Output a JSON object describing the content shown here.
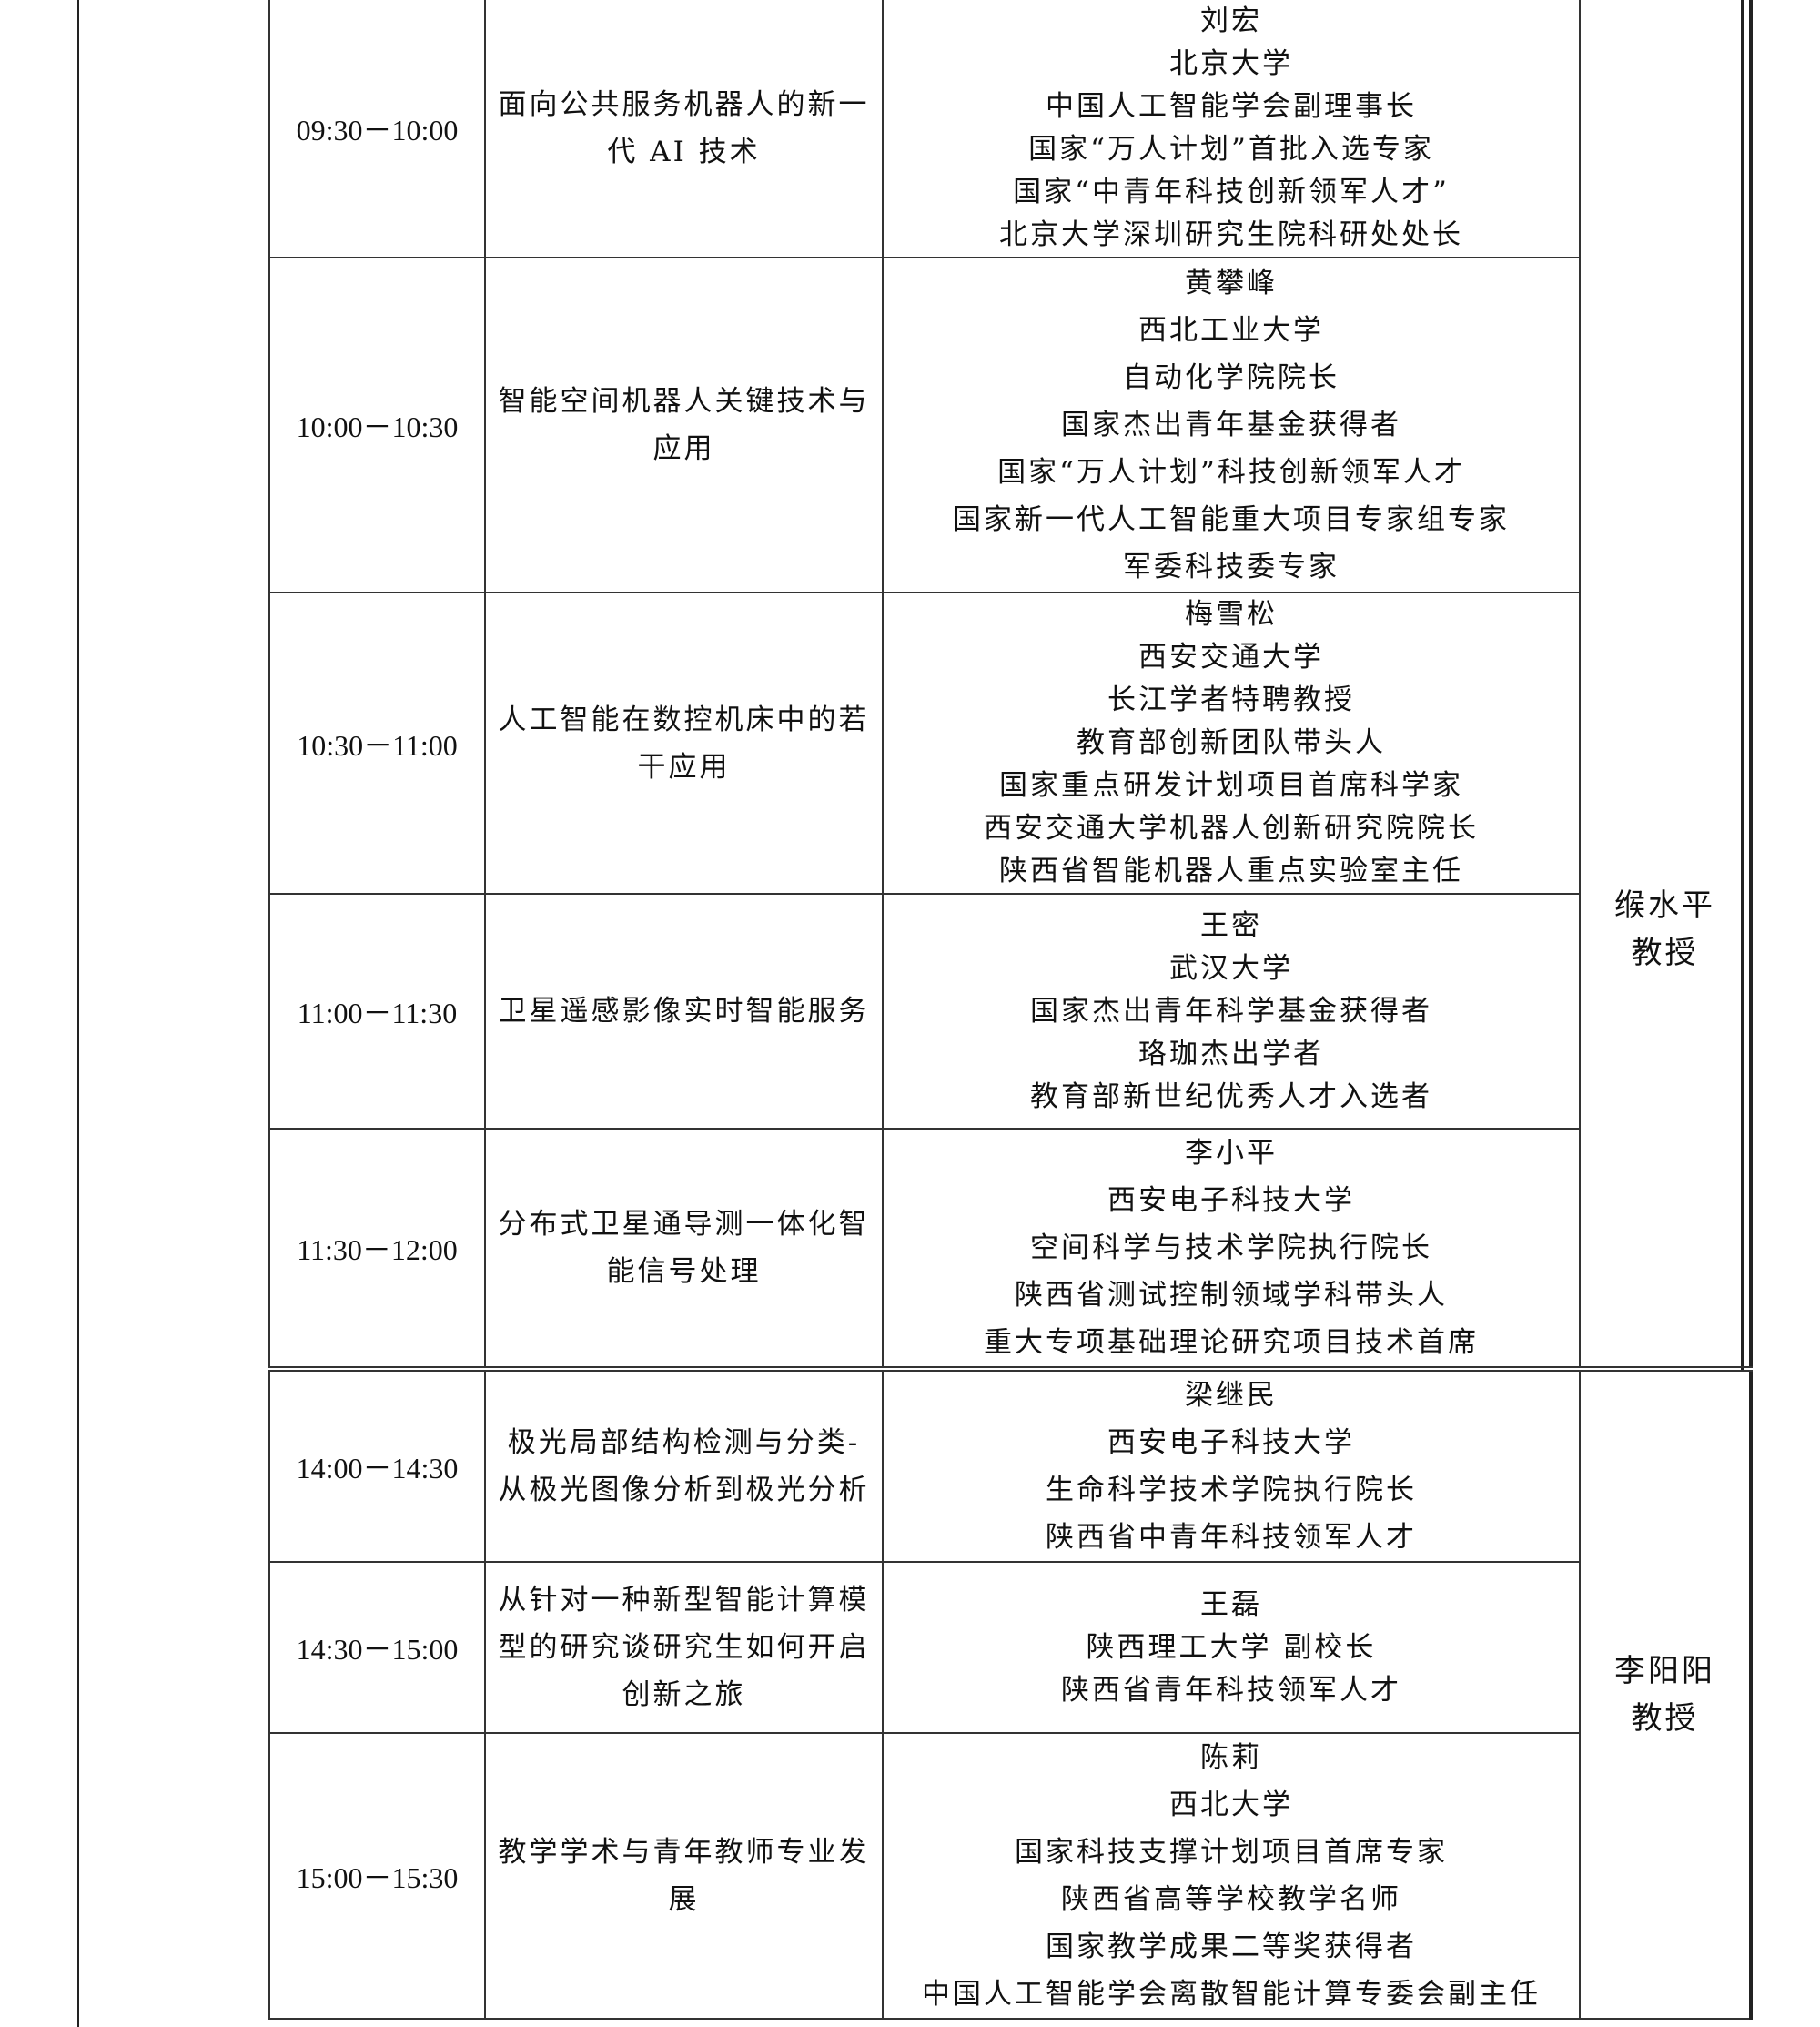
{
  "sessions": [
    {
      "host": [
        "缑水平",
        "教授"
      ],
      "talks": [
        {
          "time": "09:30－10:00",
          "topic": "面向公共服务机器人的新一代 AI 技术",
          "speaker": [
            "刘宏",
            "北京大学",
            "中国人工智能学会副理事长",
            "国家“万人计划”首批入选专家",
            "国家“中青年科技创新领军人才”",
            "北京大学深圳研究生院科研处处长"
          ]
        },
        {
          "time": "10:00－10:30",
          "topic": "智能空间机器人关键技术与应用",
          "speaker": [
            "黄攀峰",
            "西北工业大学",
            "自动化学院院长",
            "国家杰出青年基金获得者",
            "国家“万人计划”科技创新领军人才",
            "国家新一代人工智能重大项目专家组专家",
            "军委科技委专家"
          ]
        },
        {
          "time": "10:30－11:00",
          "topic": "人工智能在数控机床中的若干应用",
          "speaker": [
            "梅雪松",
            "西安交通大学",
            "长江学者特聘教授",
            "教育部创新团队带头人",
            "国家重点研发计划项目首席科学家",
            "西安交通大学机器人创新研究院院长",
            "陕西省智能机器人重点实验室主任"
          ]
        },
        {
          "time": "11:00－11:30",
          "topic": "卫星遥感影像实时智能服务",
          "speaker": [
            "王密",
            "武汉大学",
            "国家杰出青年科学基金获得者",
            "珞珈杰出学者",
            "教育部新世纪优秀人才入选者"
          ]
        },
        {
          "time": "11:30－12:00",
          "topic": "分布式卫星通导测一体化智能信号处理",
          "speaker": [
            "李小平",
            "西安电子科技大学",
            "空间科学与技术学院执行院长",
            "陕西省测试控制领域学科带头人",
            "重大专项基础理论研究项目技术首席"
          ]
        }
      ]
    },
    {
      "host": [
        "李阳阳",
        "教授"
      ],
      "talks": [
        {
          "time": "14:00－14:30",
          "topic": "极光局部结构检测与分类-从极光图像分析到极光分析",
          "speaker": [
            "梁继民",
            "西安电子科技大学",
            "生命科学技术学院执行院长",
            "陕西省中青年科技领军人才"
          ]
        },
        {
          "time": "14:30－15:00",
          "topic": "从针对一种新型智能计算模型的研究谈研究生如何开启创新之旅",
          "speaker": [
            "王磊",
            "陕西理工大学  副校长",
            "陕西省青年科技领军人才"
          ]
        },
        {
          "time": "15:00－15:30",
          "topic": "教学学术与青年教师专业发展",
          "speaker": [
            "陈莉",
            "西北大学",
            "国家科技支撑计划项目首席专家",
            "陕西省高等学校教学名师",
            "国家教学成果二等奖获得者",
            "中国人工智能学会离散智能计算专委会副主任"
          ]
        }
      ]
    }
  ]
}
